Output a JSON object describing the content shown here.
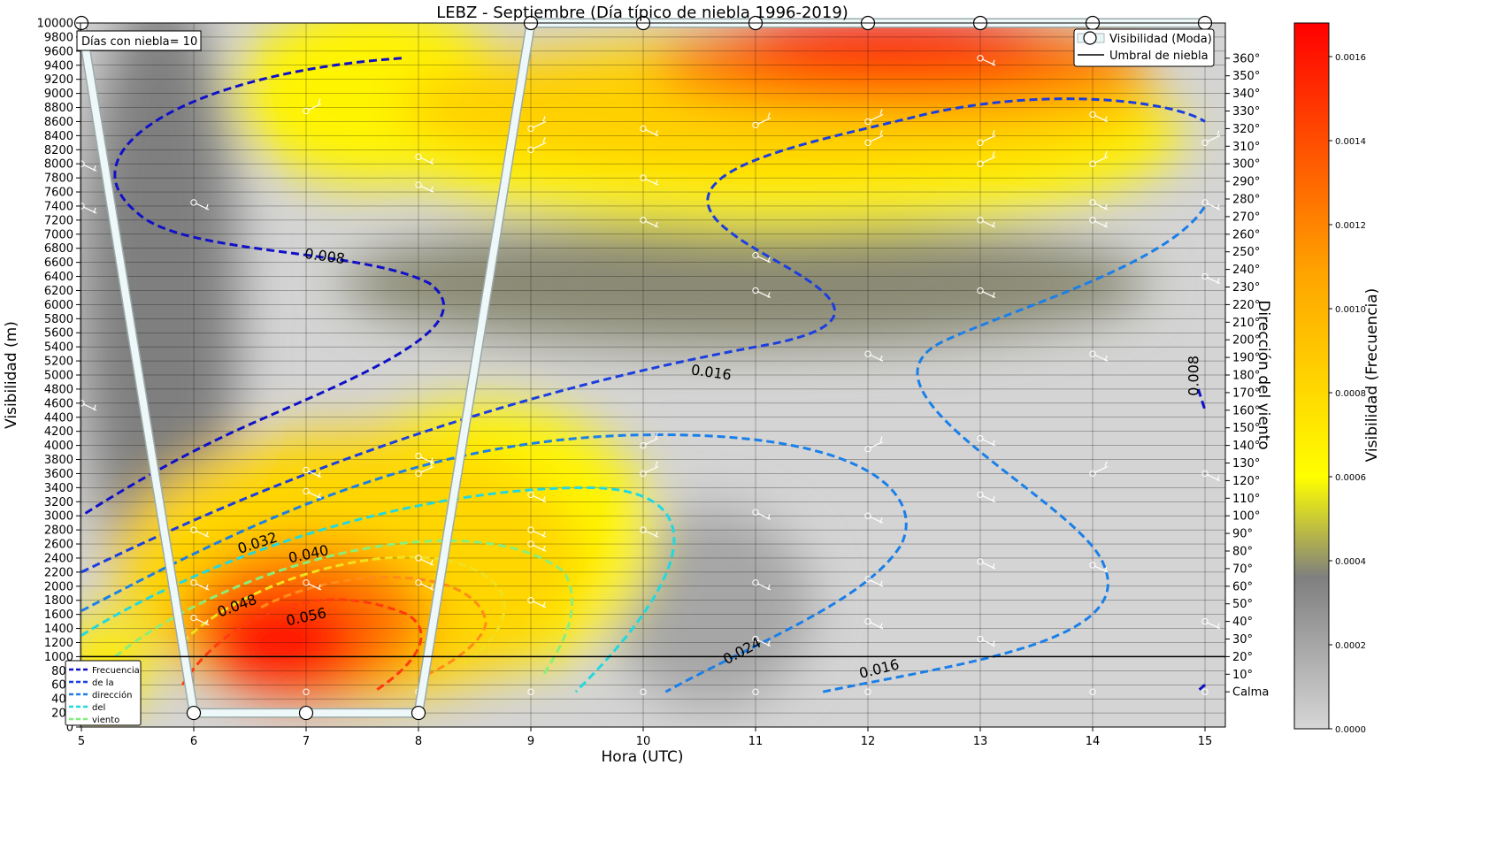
{
  "chart_data": {
    "type": "heatmap",
    "title": "LEBZ - Septiembre (Día típico de niebla 1996-2019)",
    "xlabel": "Hora (UTC)",
    "ylabel": "Visibilidad (m)",
    "y2label": "Dirección del viento",
    "colorbar_label": "Visibilidad (Frecuencia)",
    "x_ticks": [
      "5",
      "6",
      "7",
      "8",
      "9",
      "10",
      "11",
      "12",
      "13",
      "14",
      "15"
    ],
    "xlim": [
      4.85,
      15.15
    ],
    "ylim": [
      0,
      10000
    ],
    "y_ticks": [
      0,
      200,
      400,
      600,
      800,
      1000,
      1200,
      1400,
      1600,
      1800,
      2000,
      2200,
      2400,
      2600,
      2800,
      3000,
      3200,
      3400,
      3600,
      3800,
      4000,
      4200,
      4400,
      4600,
      4800,
      5000,
      5200,
      5400,
      5600,
      5800,
      6000,
      6200,
      6400,
      6600,
      6800,
      7000,
      7200,
      7400,
      7600,
      7800,
      8000,
      8200,
      8400,
      8600,
      8800,
      9000,
      9200,
      9400,
      9600,
      9800,
      10000
    ],
    "y2_ticks": [
      {
        "label": "Calma",
        "y": 500
      },
      {
        "label": "10°",
        "y": 750
      },
      {
        "label": "20°",
        "y": 1000
      },
      {
        "label": "30°",
        "y": 1250
      },
      {
        "label": "40°",
        "y": 1500
      },
      {
        "label": "50°",
        "y": 1750
      },
      {
        "label": "60°",
        "y": 2000
      },
      {
        "label": "70°",
        "y": 2250
      },
      {
        "label": "80°",
        "y": 2500
      },
      {
        "label": "90°",
        "y": 2750
      },
      {
        "label": "100°",
        "y": 3000
      },
      {
        "label": "110°",
        "y": 3250
      },
      {
        "label": "120°",
        "y": 3500
      },
      {
        "label": "130°",
        "y": 3750
      },
      {
        "label": "140°",
        "y": 4000
      },
      {
        "label": "150°",
        "y": 4250
      },
      {
        "label": "160°",
        "y": 4500
      },
      {
        "label": "170°",
        "y": 4750
      },
      {
        "label": "180°",
        "y": 5000
      },
      {
        "label": "190°",
        "y": 5250
      },
      {
        "label": "200°",
        "y": 5500
      },
      {
        "label": "210°",
        "y": 5750
      },
      {
        "label": "220°",
        "y": 6000
      },
      {
        "label": "230°",
        "y": 6250
      },
      {
        "label": "240°",
        "y": 6500
      },
      {
        "label": "250°",
        "y": 6750
      },
      {
        "label": "260°",
        "y": 7000
      },
      {
        "label": "270°",
        "y": 7250
      },
      {
        "label": "280°",
        "y": 7500
      },
      {
        "label": "290°",
        "y": 7750
      },
      {
        "label": "300°",
        "y": 8000
      },
      {
        "label": "310°",
        "y": 8250
      },
      {
        "label": "320°",
        "y": 8500
      },
      {
        "label": "330°",
        "y": 8750
      },
      {
        "label": "340°",
        "y": 9000
      },
      {
        "label": "350°",
        "y": 9250
      },
      {
        "label": "360°",
        "y": 9500
      }
    ],
    "colorbar": {
      "min": 0.0,
      "max": 0.00168,
      "ticks": [
        "0.0000",
        "0.0002",
        "0.0004",
        "0.0006",
        "0.0008",
        "0.0010",
        "0.0012",
        "0.0014",
        "0.0016"
      ],
      "tick_values": [
        0,
        0.0002,
        0.0004,
        0.0006,
        0.0008,
        0.001,
        0.0012,
        0.0014,
        0.0016
      ],
      "stops": [
        {
          "v": 0.0,
          "color": "#d6d6d6"
        },
        {
          "v": 0.00036,
          "color": "#7f7f7f"
        },
        {
          "v": 0.0006,
          "color": "#ffff00"
        },
        {
          "v": 0.00108,
          "color": "#ffa500"
        },
        {
          "v": 0.00168,
          "color": "#ff0000"
        }
      ]
    },
    "annotation": "Días con niebla= 10",
    "fog_threshold": 1000,
    "visibility_mode": [
      {
        "x": 5,
        "y": 10000
      },
      {
        "x": 6,
        "y": 200
      },
      {
        "x": 7,
        "y": 200
      },
      {
        "x": 8,
        "y": 200
      },
      {
        "x": 9,
        "y": 10000
      },
      {
        "x": 10,
        "y": 10000
      },
      {
        "x": 11,
        "y": 10000
      },
      {
        "x": 12,
        "y": 10000
      },
      {
        "x": 13,
        "y": 10000
      },
      {
        "x": 14,
        "y": 10000
      },
      {
        "x": 15,
        "y": 10000
      }
    ],
    "legend": {
      "placement": "top-right",
      "entries": [
        "Visibilidad (Moda)",
        "Umbral de niebla"
      ]
    },
    "contour_legend": {
      "placement": "bottom-left",
      "entries": [
        {
          "label": "Frecuencia",
          "color": "#1010c8"
        },
        {
          "label": "de  la",
          "color": "#1a3ee0"
        },
        {
          "label": "dirección",
          "color": "#1e7ee8"
        },
        {
          "label": "del",
          "color": "#22d8e0"
        },
        {
          "label": "viento",
          "color": "#7cf07a"
        }
      ]
    },
    "contour_labels": [
      {
        "text": "0.008",
        "x": 7.16,
        "y": 6620,
        "rot": 8
      },
      {
        "text": "0.016",
        "x": 10.6,
        "y": 4970,
        "rot": 8
      },
      {
        "text": "0.032",
        "x": 6.58,
        "y": 2550,
        "rot": -18
      },
      {
        "text": "0.040",
        "x": 7.03,
        "y": 2390,
        "rot": -12
      },
      {
        "text": "0.048",
        "x": 6.4,
        "y": 1660,
        "rot": -20
      },
      {
        "text": "0.056",
        "x": 7.01,
        "y": 1500,
        "rot": -12
      },
      {
        "text": "0.024",
        "x": 10.9,
        "y": 1020,
        "rot": -28
      },
      {
        "text": "0.016",
        "x": 12.11,
        "y": 760,
        "rot": -14
      },
      {
        "text": "0.008",
        "x": 14.94,
        "y": 4990,
        "rot": -90
      }
    ]
  }
}
